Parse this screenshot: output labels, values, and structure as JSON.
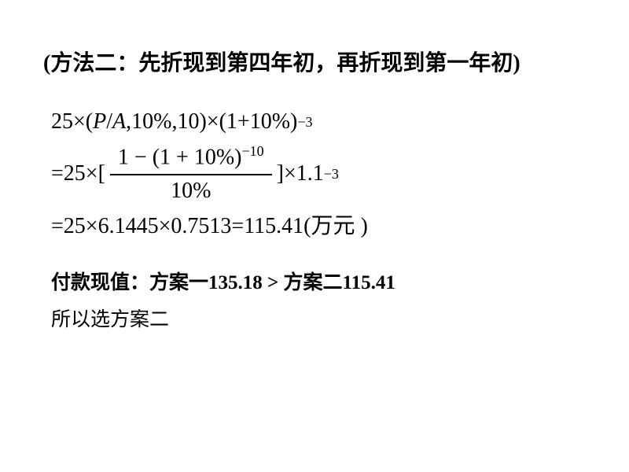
{
  "heading": "(方法二：先折现到第四年初，再折现到第一年初)",
  "formula": {
    "line1_prefix": "25",
    "line1_times": "×",
    "line1_paren_open": "(",
    "line1_P": "P",
    "line1_slash": " / ",
    "line1_A": "A",
    "line1_args": ",10%,10",
    "line1_paren_close": ")",
    "line1_times2": "×",
    "line1_base": "(1",
    "line1_plus": "+",
    "line1_pct": "10%)",
    "line1_exp": "−3",
    "line2_eq": "=",
    "line2_prefix": " 25",
    "line2_times": "×",
    "line2_bracket_open": "[",
    "frac_num_a": "1",
    "frac_num_minus": "−",
    "frac_num_b": "(1",
    "frac_num_plus": "+",
    "frac_num_c": "10%)",
    "frac_num_exp": "−10",
    "frac_den": "10%",
    "line2_bracket_close": "]",
    "line2_times2": "×",
    "line2_base": "1.1",
    "line2_exp": "−3",
    "line3_eq": "=",
    "line3_a": " 25",
    "line3_times": "×",
    "line3_b": "6.1445",
    "line3_times2": "×",
    "line3_c": "0.7513",
    "line3_eq2": " =",
    "line3_result": "115.41",
    "line3_unit": "(万元 )"
  },
  "conclusion": {
    "line1": "付款现值：方案一135.18 > 方案二115.41",
    "line2": "所以选方案二"
  }
}
